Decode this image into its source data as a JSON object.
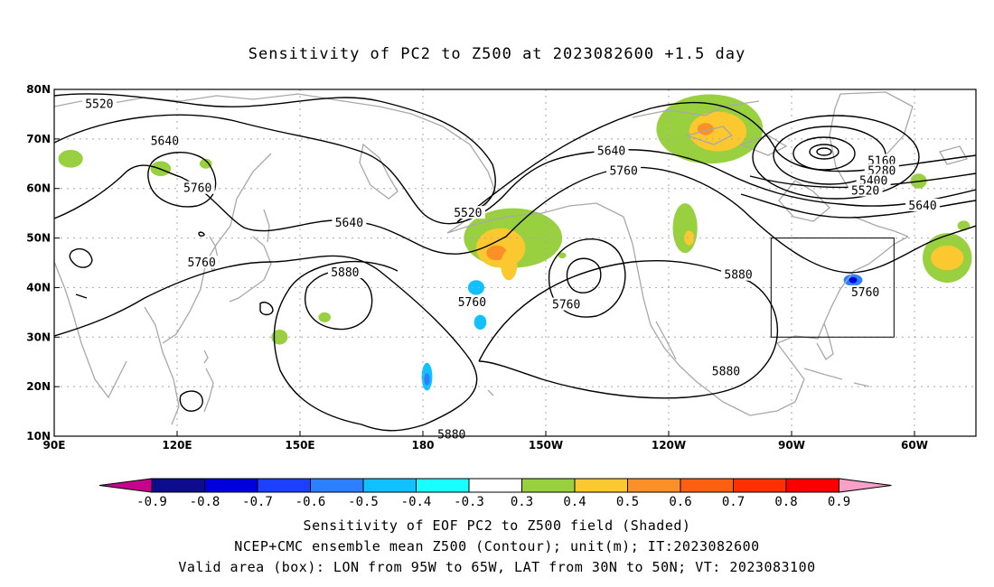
{
  "title": "Sensitivity of PC2 to Z500 at 2023082600 +1.5 day",
  "captions": {
    "line1": "Sensitivity of EOF PC2 to Z500 field (Shaded)",
    "line2": "NCEP+CMC ensemble mean Z500 (Contour); unit(m); IT:2023082600",
    "line3": "Valid area (box): LON from 95W to 65W, LAT from 30N to 50N; VT: 2023083100"
  },
  "map": {
    "lon_range": [
      90,
      315
    ],
    "lat_range": [
      10,
      80
    ],
    "x_ticks": [
      {
        "lon": 90,
        "label": "90E"
      },
      {
        "lon": 120,
        "label": "120E"
      },
      {
        "lon": 150,
        "label": "150E"
      },
      {
        "lon": 180,
        "label": "180"
      },
      {
        "lon": 210,
        "label": "150W"
      },
      {
        "lon": 240,
        "label": "120W"
      },
      {
        "lon": 270,
        "label": "90W"
      },
      {
        "lon": 300,
        "label": "60W"
      }
    ],
    "y_ticks": [
      {
        "lat": 10,
        "label": "10N"
      },
      {
        "lat": 20,
        "label": "20N"
      },
      {
        "lat": 30,
        "label": "30N"
      },
      {
        "lat": 40,
        "label": "40N"
      },
      {
        "lat": 50,
        "label": "50N"
      },
      {
        "lat": 60,
        "label": "60N"
      },
      {
        "lat": 70,
        "label": "70N"
      },
      {
        "lat": 80,
        "label": "80N"
      }
    ],
    "valid_box": {
      "lon_min": 265,
      "lon_max": 295,
      "lat_min": 30,
      "lat_max": 50
    },
    "contour_labels": [
      {
        "text": "5520",
        "lon": 101,
        "lat": 77
      },
      {
        "text": "5640",
        "lon": 117,
        "lat": 69.5
      },
      {
        "text": "5760",
        "lon": 125,
        "lat": 60
      },
      {
        "text": "5640",
        "lon": 162,
        "lat": 53
      },
      {
        "text": "5760",
        "lon": 126,
        "lat": 45
      },
      {
        "text": "5880",
        "lon": 161,
        "lat": 43
      },
      {
        "text": "5520",
        "lon": 191,
        "lat": 55
      },
      {
        "text": "5760",
        "lon": 192,
        "lat": 37
      },
      {
        "text": "5640",
        "lon": 226,
        "lat": 67.5
      },
      {
        "text": "5760",
        "lon": 229,
        "lat": 63.5
      },
      {
        "text": "5760",
        "lon": 215,
        "lat": 36.5
      },
      {
        "text": "5880",
        "lon": 257,
        "lat": 42.5
      },
      {
        "text": "5160",
        "lon": 292,
        "lat": 65.5
      },
      {
        "text": "5280",
        "lon": 292,
        "lat": 63.5
      },
      {
        "text": "5400",
        "lon": 290,
        "lat": 61.5
      },
      {
        "text": "5520",
        "lon": 288,
        "lat": 59.5
      },
      {
        "text": "5640",
        "lon": 302,
        "lat": 56.5
      },
      {
        "text": "5760",
        "lon": 288,
        "lat": 39
      },
      {
        "text": "5880",
        "lon": 254,
        "lat": 23
      },
      {
        "text": "5880",
        "lon": 187,
        "lat": 10.3
      }
    ],
    "shaded_areas": [
      {
        "lon": 94,
        "lat": 66,
        "rx": 3,
        "ry": 1.8,
        "value": 0.3
      },
      {
        "lon": 116,
        "lat": 64,
        "rx": 2.5,
        "ry": 1.5,
        "value": 0.3
      },
      {
        "lon": 127,
        "lat": 65,
        "rx": 1.5,
        "ry": 1,
        "value": 0.3
      },
      {
        "lon": 202,
        "lat": 50,
        "rx": 12,
        "ry": 6,
        "value": 0.3
      },
      {
        "lon": 199,
        "lat": 48,
        "rx": 6,
        "ry": 4,
        "value": 0.4
      },
      {
        "lon": 198,
        "lat": 47,
        "rx": 2.5,
        "ry": 1.5,
        "value": 0.5
      },
      {
        "lon": 201,
        "lat": 44.5,
        "rx": 2,
        "ry": 3,
        "value": 0.4
      },
      {
        "lon": 193,
        "lat": 40,
        "rx": 2,
        "ry": 1.5,
        "value": -0.4
      },
      {
        "lon": 244,
        "lat": 52,
        "rx": 3,
        "ry": 5,
        "value": 0.3
      },
      {
        "lon": 245,
        "lat": 50,
        "rx": 1.2,
        "ry": 1.5,
        "value": 0.4
      },
      {
        "lon": 250,
        "lat": 72,
        "rx": 13,
        "ry": 7,
        "value": 0.3
      },
      {
        "lon": 252,
        "lat": 71.5,
        "rx": 7,
        "ry": 4,
        "value": 0.4
      },
      {
        "lon": 249,
        "lat": 72,
        "rx": 2,
        "ry": 1.2,
        "value": 0.5
      },
      {
        "lon": 214,
        "lat": 46.5,
        "rx": 1,
        "ry": 0.6,
        "value": 0.3
      },
      {
        "lon": 308,
        "lat": 46,
        "rx": 6,
        "ry": 5,
        "value": 0.3
      },
      {
        "lon": 308,
        "lat": 46,
        "rx": 4,
        "ry": 2.5,
        "value": 0.4
      },
      {
        "lon": 285,
        "lat": 41.5,
        "rx": 2.3,
        "ry": 1.2,
        "value": -0.5
      },
      {
        "lon": 285,
        "lat": 41.5,
        "rx": 1,
        "ry": 0.6,
        "value": -0.7
      },
      {
        "lon": 181,
        "lat": 22,
        "rx": 1.3,
        "ry": 2.8,
        "value": -0.4
      },
      {
        "lon": 181,
        "lat": 21.5,
        "rx": 0.7,
        "ry": 1.2,
        "value": -0.5
      },
      {
        "lon": 194,
        "lat": 33,
        "rx": 1.5,
        "ry": 1.5,
        "value": -0.4
      },
      {
        "lon": 145,
        "lat": 30,
        "rx": 2,
        "ry": 1.5,
        "value": 0.3
      },
      {
        "lon": 156,
        "lat": 34,
        "rx": 1.5,
        "ry": 1,
        "value": 0.3
      },
      {
        "lon": 301,
        "lat": 61.5,
        "rx": 2,
        "ry": 1.5,
        "value": 0.3
      },
      {
        "lon": 312,
        "lat": 52.5,
        "rx": 1.5,
        "ry": 1,
        "value": 0.3
      }
    ]
  },
  "colorbar": {
    "labels": [
      "-0.9",
      "-0.8",
      "-0.7",
      "-0.6",
      "-0.5",
      "-0.4",
      "-0.3",
      "0.3",
      "0.4",
      "0.5",
      "0.6",
      "0.7",
      "0.8",
      "0.9"
    ],
    "left_arrow_color": "#c8008c",
    "right_arrow_color": "#f8a0c8",
    "colors": [
      "#0c0c8c",
      "#0000dc",
      "#1c40ff",
      "#2c80ff",
      "#10c0ff",
      "#18ffff",
      "#ffffff",
      "#98d040",
      "#fcc830",
      "#fc9028",
      "#fc6010",
      "#fc3000",
      "#fc0000"
    ]
  },
  "colors": {
    "contour": "#000000",
    "coast": "#a8a8a8",
    "grid": "#a8a8a8",
    "frame": "#000000"
  }
}
